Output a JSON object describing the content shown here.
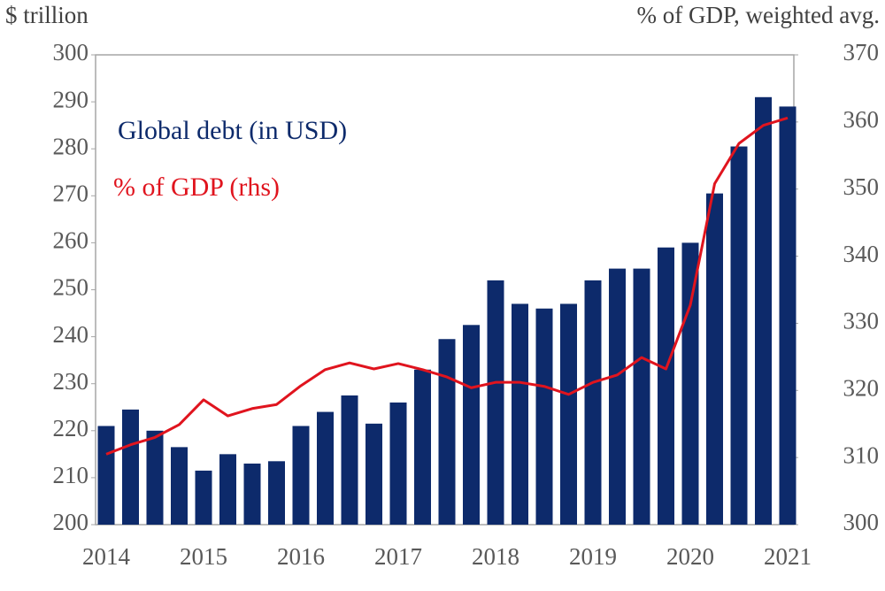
{
  "chart_data": {
    "type": "bar",
    "y_label": "$ trillion",
    "y2_label": "% of GDP, weighted avg.",
    "categories": [
      "2014",
      null,
      null,
      null,
      "2015",
      null,
      null,
      null,
      "2016",
      null,
      null,
      null,
      "2017",
      null,
      null,
      null,
      "2018",
      null,
      null,
      null,
      "2019",
      null,
      null,
      null,
      "2020",
      null,
      null,
      null,
      "2021"
    ],
    "series": [
      {
        "name": "Global debt (in USD)",
        "color": "#0d2a6b",
        "type": "bar",
        "values": [
          221,
          224.5,
          220,
          216.5,
          211.5,
          215,
          213,
          213.5,
          221,
          224,
          227.5,
          221.5,
          226,
          233,
          239.5,
          242.5,
          252,
          247,
          246,
          247,
          252,
          254.5,
          254.5,
          259,
          260,
          270.5,
          280.5,
          291,
          289
        ]
      },
      {
        "name": "% of GDP (rhs)",
        "color": "#e0141e",
        "type": "line",
        "axis": "y2",
        "values": [
          310.5,
          311.9,
          313,
          314.9,
          318.6,
          316.2,
          317.3,
          317.9,
          320.7,
          323.1,
          324.1,
          323.2,
          324,
          323.1,
          322,
          320.4,
          321.2,
          321.2,
          320.6,
          319.4,
          321.2,
          322.3,
          324.9,
          323.2,
          332.7,
          350.8,
          356.8,
          359.5,
          360.6
        ]
      }
    ],
    "ylim": [
      200,
      300
    ],
    "yticks": [
      200,
      210,
      220,
      230,
      240,
      250,
      260,
      270,
      280,
      290,
      300
    ],
    "y2lim": [
      300,
      370
    ],
    "y2ticks": [
      300,
      310,
      320,
      330,
      340,
      350,
      360,
      370
    ]
  }
}
